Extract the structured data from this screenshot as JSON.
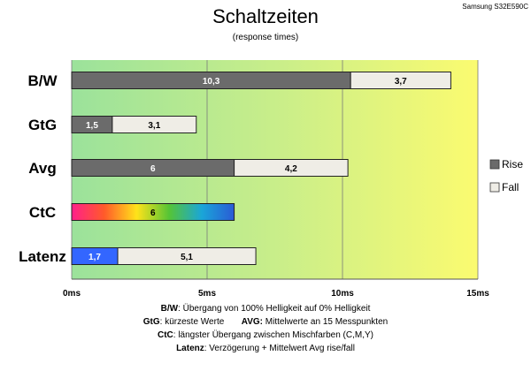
{
  "chart_data": {
    "type": "bar",
    "title": "Schaltzeiten",
    "subtitle": "(response times)",
    "model": "Samsung S32E590C",
    "categories": [
      "B/W",
      "GtG",
      "Avg",
      "CtC",
      "Latenz"
    ],
    "series": [
      {
        "name": "Rise",
        "values": [
          10.3,
          1.5,
          6,
          6,
          1.7
        ],
        "labels": [
          "10,3",
          "1,5",
          "6",
          "6",
          "1,7"
        ]
      },
      {
        "name": "Fall",
        "values": [
          3.7,
          3.1,
          4.2,
          0,
          5.1
        ],
        "labels": [
          "3,7",
          "3,1",
          "4,2",
          "",
          "5,1"
        ]
      }
    ],
    "xlim": [
      0,
      15
    ],
    "xticks": [
      0,
      5,
      10,
      15
    ],
    "xtick_labels": [
      "0ms",
      "5ms",
      "10ms",
      "15ms"
    ],
    "stacked": true,
    "orientation": "horizontal",
    "legend_position": "right",
    "background": "gradient green to yellow",
    "grid": true
  },
  "colors": {
    "rise": "#6b6b6b",
    "fall": "#efede6",
    "bg_start": "#9be29b",
    "bg_end": "#fbfb70",
    "latenz_rise": "#3366ff"
  },
  "footer": {
    "line1_key": "B/W",
    "line1_text": ":  Übergang von 100% Helligkeit auf 0% Helligkeit",
    "line2a_key": "GtG",
    "line2a_text": ": kürzeste  Werte",
    "line2b_key": "AVG:",
    "line2b_text": " Mittelwerte an 15 Messpunkten",
    "line3_key": "CtC",
    "line3_text": ": längster Übergang  zwischen Mischfarben  (C,M,Y)",
    "line4_key": "Latenz",
    "line4_text": ": Verzögerung  + Mittelwert  Avg rise/fall"
  }
}
